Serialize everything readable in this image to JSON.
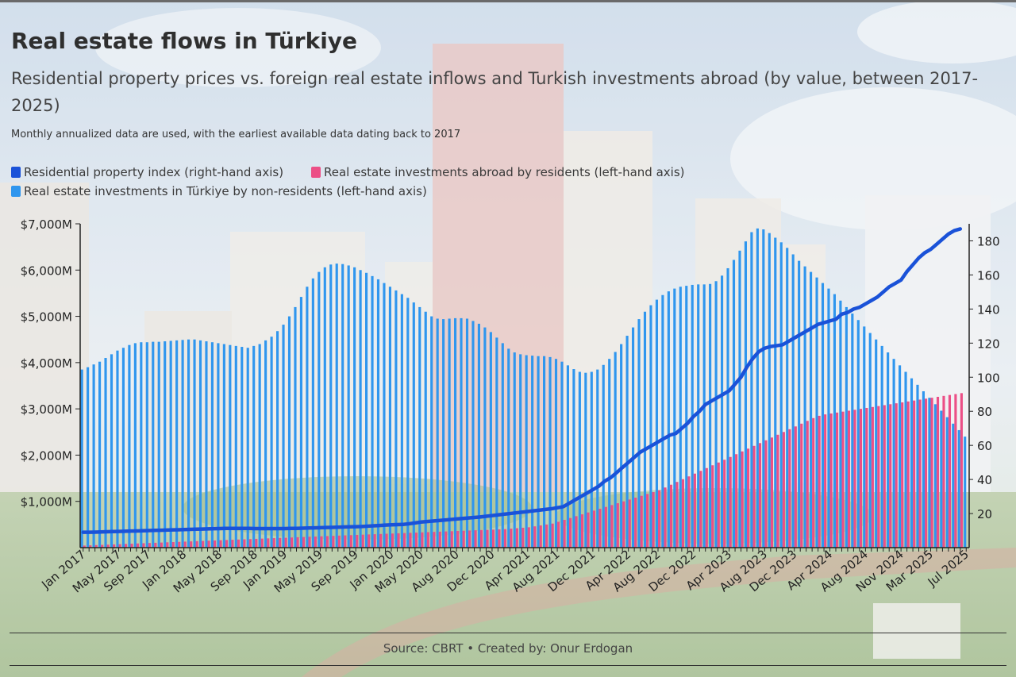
{
  "title": "Real estate flows in Türkiye",
  "subtitle": "Residential property prices vs. foreign real estate inflows and Turkish investments abroad (by value, between 2017-2025)",
  "note": "Monthly annualized data are used, with the earliest available data dating back to 2017",
  "source": "Source: CBRT • Created by: Onur Erdogan",
  "colors": {
    "index": "#1a52d8",
    "abroad": "#ec4f86",
    "inflow": "#2f96ee"
  },
  "chart_data": {
    "type": "bar",
    "x_start": "Jan 2017",
    "x_end": "Jul 2025",
    "x_tick_labels": [
      "Jan 2017",
      "May 2017",
      "Sep 2017",
      "Jan 2018",
      "May 2018",
      "Sep 2018",
      "Jan 2019",
      "May 2019",
      "Sep 2019",
      "Jan 2020",
      "May 2020",
      "Aug 2020",
      "Dec 2020",
      "Apr 2021",
      "Aug 2021",
      "Dec 2021",
      "Apr 2022",
      "Aug 2022",
      "Dec 2022",
      "Apr 2023",
      "Aug 2023",
      "Dec 2023",
      "Apr 2024",
      "Aug 2024",
      "Nov 2024",
      "Mar 2025",
      "Jul 2025"
    ],
    "y_left_ticks": [
      "$1,000M",
      "$2,000M",
      "$3,000M",
      "$4,000M",
      "$5,000M",
      "$6,000M",
      "$7,000M"
    ],
    "y_right_ticks": [
      "20",
      "40",
      "60",
      "80",
      "100",
      "120",
      "140",
      "160",
      "180"
    ],
    "ylim_left": [
      0,
      7000
    ],
    "ylim_right": [
      0,
      190
    ],
    "series": [
      {
        "name": "Residential property index (right-hand axis)",
        "kind": "line",
        "axis": "right",
        "values": [
          9,
          9,
          9.1,
          9.2,
          9.3,
          9.4,
          9.5,
          9.6,
          9.7,
          9.8,
          9.9,
          10,
          10.1,
          10.2,
          10.3,
          10.4,
          10.5,
          10.6,
          10.7,
          10.8,
          10.9,
          11,
          11.1,
          11.2,
          11.3,
          11.3,
          11.3,
          11.3,
          11.3,
          11.2,
          11.2,
          11.2,
          11.2,
          11.2,
          11.2,
          11.3,
          11.3,
          11.4,
          11.5,
          11.6,
          11.7,
          11.8,
          11.9,
          12,
          12.1,
          12.2,
          12.3,
          12.4,
          12.6,
          12.8,
          13,
          13.2,
          13.4,
          13.5,
          13.6,
          14,
          14.5,
          15,
          15.3,
          15.6,
          15.9,
          16.2,
          16.5,
          16.8,
          17.1,
          17.4,
          17.7,
          18,
          18.4,
          18.8,
          19.2,
          19.6,
          20,
          20.4,
          20.8,
          21.2,
          21.6,
          22,
          22.4,
          22.8,
          23.4,
          24,
          26,
          28,
          30,
          32,
          34,
          36,
          39,
          41,
          44,
          47,
          50,
          53,
          56,
          58,
          60,
          62,
          64,
          66,
          67,
          70,
          73,
          77,
          80,
          84,
          86,
          88,
          90,
          92,
          96,
          100,
          106,
          111,
          115,
          117,
          118,
          118.5,
          119,
          121,
          123,
          125,
          127,
          129,
          131,
          132,
          133,
          134,
          137,
          138,
          140,
          141,
          143,
          145,
          147,
          150,
          153,
          155,
          157,
          162,
          166,
          170,
          173,
          175,
          178,
          181,
          184,
          186,
          187
        ]
      },
      {
        "name": "Real estate investments abroad by residents (left-hand axis)",
        "kind": "bar",
        "axis": "left",
        "values": [
          45,
          50,
          55,
          60,
          65,
          70,
          75,
          80,
          85,
          90,
          95,
          100,
          105,
          110,
          115,
          120,
          125,
          130,
          135,
          140,
          145,
          150,
          155,
          160,
          165,
          170,
          175,
          180,
          185,
          190,
          195,
          200,
          205,
          210,
          215,
          220,
          225,
          230,
          235,
          240,
          245,
          250,
          255,
          260,
          265,
          270,
          275,
          280,
          285,
          290,
          295,
          300,
          305,
          310,
          315,
          320,
          325,
          330,
          335,
          340,
          345,
          350,
          355,
          360,
          365,
          370,
          375,
          380,
          385,
          390,
          395,
          400,
          410,
          420,
          430,
          440,
          460,
          480,
          500,
          520,
          560,
          600,
          640,
          680,
          720,
          760,
          800,
          840,
          880,
          920,
          960,
          1000,
          1040,
          1080,
          1120,
          1160,
          1200,
          1240,
          1300,
          1360,
          1420,
          1480,
          1540,
          1600,
          1660,
          1720,
          1780,
          1840,
          1900,
          1960,
          2020,
          2080,
          2140,
          2200,
          2260,
          2320,
          2380,
          2440,
          2500,
          2560,
          2620,
          2680,
          2740,
          2800,
          2850,
          2880,
          2900,
          2920,
          2940,
          2960,
          2980,
          3000,
          3020,
          3040,
          3060,
          3080,
          3100,
          3120,
          3140,
          3160,
          3180,
          3200,
          3220,
          3240,
          3260,
          3280,
          3300,
          3320,
          3340
        ]
      },
      {
        "name": "Real estate investments in Türkiye by non-residents (left-hand axis)",
        "kind": "bar",
        "axis": "left",
        "values": [
          3850,
          3900,
          3960,
          4020,
          4100,
          4180,
          4260,
          4320,
          4380,
          4420,
          4440,
          4440,
          4450,
          4450,
          4460,
          4470,
          4480,
          4490,
          4500,
          4500,
          4480,
          4460,
          4440,
          4420,
          4400,
          4380,
          4360,
          4340,
          4320,
          4360,
          4400,
          4480,
          4560,
          4680,
          4820,
          5000,
          5200,
          5420,
          5640,
          5820,
          5960,
          6060,
          6120,
          6140,
          6130,
          6100,
          6060,
          6000,
          5940,
          5870,
          5800,
          5720,
          5640,
          5560,
          5480,
          5400,
          5300,
          5200,
          5100,
          5000,
          4950,
          4940,
          4950,
          4960,
          4960,
          4950,
          4900,
          4840,
          4760,
          4660,
          4540,
          4420,
          4300,
          4220,
          4180,
          4160,
          4150,
          4140,
          4140,
          4120,
          4080,
          4020,
          3940,
          3860,
          3800,
          3780,
          3800,
          3850,
          3950,
          4080,
          4230,
          4400,
          4580,
          4760,
          4940,
          5100,
          5240,
          5360,
          5460,
          5540,
          5600,
          5640,
          5660,
          5680,
          5690,
          5690,
          5700,
          5760,
          5880,
          6040,
          6220,
          6420,
          6620,
          6820,
          6900,
          6880,
          6800,
          6700,
          6600,
          6480,
          6340,
          6200,
          6080,
          5960,
          5840,
          5720,
          5600,
          5480,
          5340,
          5200,
          5060,
          4920,
          4780,
          4640,
          4500,
          4360,
          4220,
          4080,
          3940,
          3800,
          3660,
          3520,
          3380,
          3240,
          3100,
          2960,
          2820,
          2680,
          2540,
          2400
        ]
      }
    ]
  }
}
